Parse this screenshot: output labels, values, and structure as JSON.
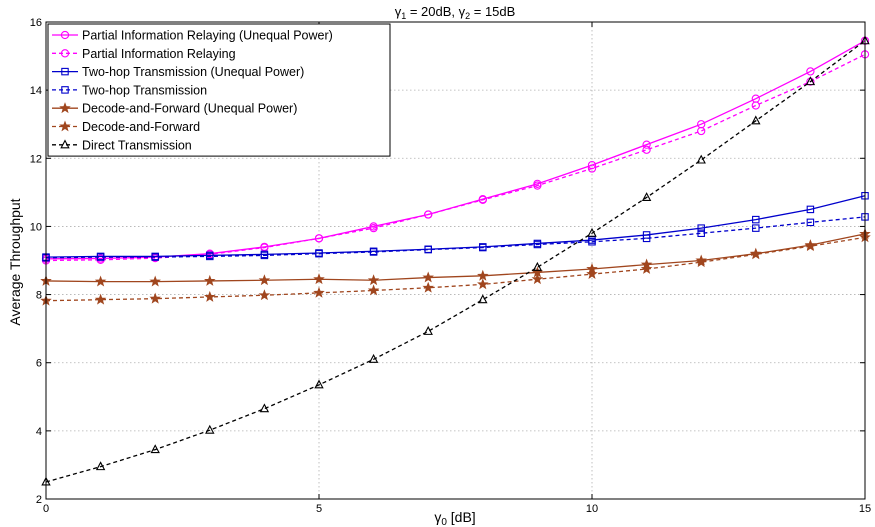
{
  "chart_data": {
    "type": "line",
    "title": "γ1 = 20dB, γ2 = 15dB",
    "title_parts": {
      "g1_sym": "γ",
      "g1_sub": "1",
      "g1_val": " = 20dB, ",
      "g2_sym": "γ",
      "g2_sub": "2",
      "g2_val": " = 15dB"
    },
    "xlabel": "γ0  [dB]",
    "xlabel_parts": {
      "sym": "γ",
      "sub": "0",
      "rest": "  [dB]"
    },
    "ylabel": "Average Throughput",
    "xlim": [
      0,
      15
    ],
    "ylim": [
      2,
      16
    ],
    "xticks": [
      0,
      5,
      10,
      15
    ],
    "yticks": [
      2,
      4,
      6,
      8,
      10,
      12,
      14,
      16
    ],
    "grid": true,
    "legend_position": "top-left",
    "x": [
      0,
      1,
      2,
      3,
      4,
      5,
      6,
      7,
      8,
      9,
      10,
      11,
      12,
      13,
      14,
      15
    ],
    "series": [
      {
        "name": "Partial Information Relaying (Unequal Power)",
        "color": "#ff00ff",
        "dash": "solid",
        "marker": "circle",
        "values": [
          9.05,
          9.06,
          9.1,
          9.2,
          9.4,
          9.65,
          10.0,
          10.35,
          10.8,
          11.25,
          11.8,
          12.4,
          13.0,
          13.75,
          14.55,
          15.45
        ]
      },
      {
        "name": "Partial Information Relaying",
        "color": "#ff00ff",
        "dash": "dashed",
        "marker": "circle",
        "values": [
          9.0,
          9.02,
          9.07,
          9.18,
          9.38,
          9.65,
          9.95,
          10.35,
          10.78,
          11.2,
          11.7,
          12.25,
          12.8,
          13.55,
          14.25,
          15.05
        ]
      },
      {
        "name": "Two-hop Transmission (Unequal Power)",
        "color": "#0000cc",
        "dash": "solid",
        "marker": "square",
        "values": [
          9.1,
          9.12,
          9.12,
          9.15,
          9.18,
          9.22,
          9.27,
          9.33,
          9.4,
          9.5,
          9.6,
          9.75,
          9.95,
          10.2,
          10.5,
          10.9
        ]
      },
      {
        "name": "Two-hop Transmission",
        "color": "#0000cc",
        "dash": "dashed",
        "marker": "square",
        "values": [
          9.08,
          9.1,
          9.1,
          9.12,
          9.15,
          9.2,
          9.25,
          9.32,
          9.38,
          9.47,
          9.55,
          9.65,
          9.8,
          9.95,
          10.12,
          10.28
        ]
      },
      {
        "name": "Decode-and-Forward (Unequal Power)",
        "color": "#a0461e",
        "dash": "solid",
        "marker": "star",
        "values": [
          8.4,
          8.38,
          8.38,
          8.4,
          8.42,
          8.45,
          8.42,
          8.5,
          8.55,
          8.65,
          8.75,
          8.88,
          9.0,
          9.2,
          9.45,
          9.78
        ]
      },
      {
        "name": "Decode-and-Forward",
        "color": "#a0461e",
        "dash": "dashed",
        "marker": "star",
        "values": [
          7.82,
          7.85,
          7.88,
          7.93,
          7.98,
          8.05,
          8.12,
          8.2,
          8.3,
          8.45,
          8.6,
          8.75,
          8.95,
          9.18,
          9.42,
          9.68
        ]
      },
      {
        "name": "Direct Transmission",
        "color": "#000000",
        "dash": "dashed",
        "marker": "triangle",
        "values": [
          2.5,
          2.95,
          3.45,
          4.02,
          4.65,
          5.35,
          6.1,
          6.92,
          7.85,
          8.8,
          9.8,
          10.85,
          11.95,
          13.1,
          14.25,
          15.45
        ]
      }
    ]
  }
}
